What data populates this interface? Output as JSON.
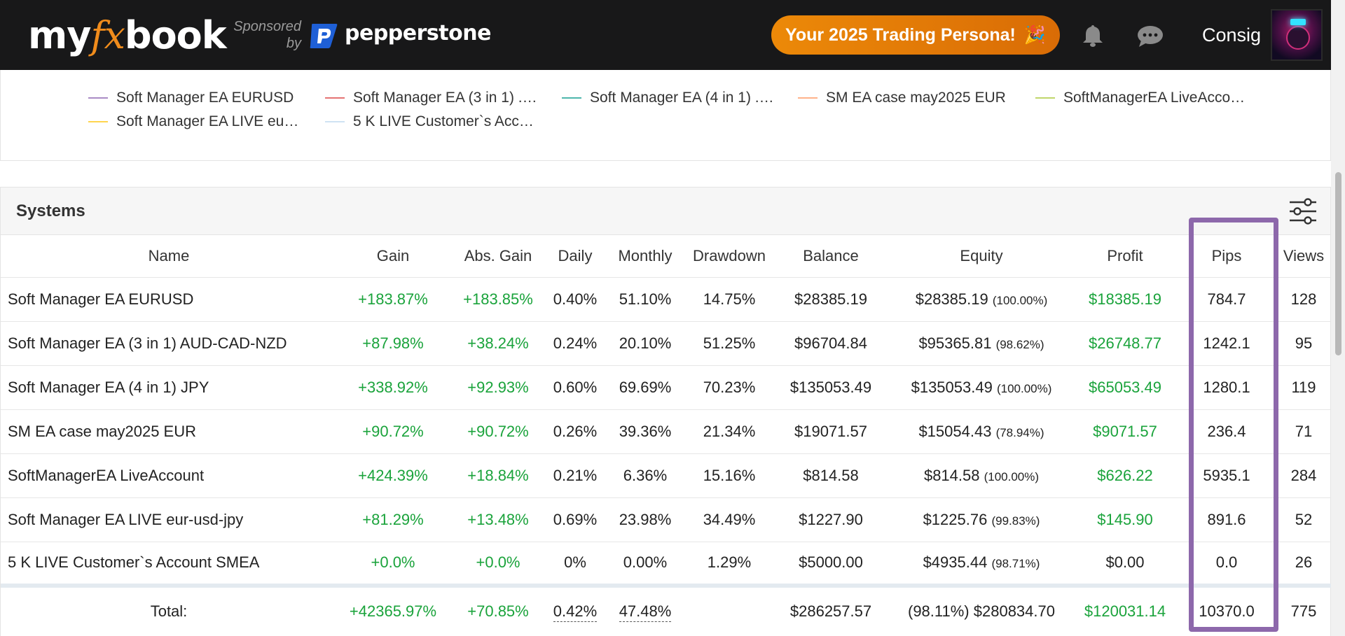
{
  "navbar": {
    "logo_pre": "my",
    "logo_fx": "fx",
    "logo_post": "book",
    "sponsored_line1": "Sponsored",
    "sponsored_line2": "by",
    "sponsor_name": "pepperstone",
    "persona_button": "Your 2025 Trading Persona!",
    "persona_emoji": "🎉",
    "username": "Consig",
    "accent": "#ec8908"
  },
  "legend": [
    {
      "label": "Soft Manager EA EURUSD",
      "color": "#a98bc5"
    },
    {
      "label": "Soft Manager EA (3 in 1) .…",
      "color": "#e57373"
    },
    {
      "label": "Soft Manager EA (4 in 1) .…",
      "color": "#4db6ac"
    },
    {
      "label": "SM EA case may2025 EUR",
      "color": "#ffb28a"
    },
    {
      "label": "SoftManagerEA LiveAcco…",
      "color": "#c0d66a"
    },
    {
      "label": "Soft Manager EA LIVE eu…",
      "color": "#ffd54f"
    },
    {
      "label": "5 K LIVE Customer`s Acc…",
      "color": "#cfe3f3"
    }
  ],
  "systems": {
    "title": "Systems",
    "columns": [
      "Name",
      "Gain",
      "Abs. Gain",
      "Daily",
      "Monthly",
      "Drawdown",
      "Balance",
      "Equity",
      "Profit",
      "Pips",
      "Views"
    ],
    "rows": [
      {
        "name": "Soft Manager EA EURUSD",
        "gain": "+183.87%",
        "abs_gain": "+183.85%",
        "daily": "0.40%",
        "monthly": "51.10%",
        "drawdown": "14.75%",
        "balance": "$28385.19",
        "equity": "$28385.19",
        "equity_pct": "(100.00%)",
        "profit": "$18385.19",
        "pips": "784.7",
        "views": "128"
      },
      {
        "name": "Soft Manager EA (3 in 1) AUD-CAD-NZD",
        "gain": "+87.98%",
        "abs_gain": "+38.24%",
        "daily": "0.24%",
        "monthly": "20.10%",
        "drawdown": "51.25%",
        "balance": "$96704.84",
        "equity": "$95365.81",
        "equity_pct": "(98.62%)",
        "profit": "$26748.77",
        "pips": "1242.1",
        "views": "95"
      },
      {
        "name": "Soft Manager EA (4 in 1) JPY",
        "gain": "+338.92%",
        "abs_gain": "+92.93%",
        "daily": "0.60%",
        "monthly": "69.69%",
        "drawdown": "70.23%",
        "balance": "$135053.49",
        "equity": "$135053.49",
        "equity_pct": "(100.00%)",
        "profit": "$65053.49",
        "pips": "1280.1",
        "views": "119"
      },
      {
        "name": "SM EA case may2025 EUR",
        "gain": "+90.72%",
        "abs_gain": "+90.72%",
        "daily": "0.26%",
        "monthly": "39.36%",
        "drawdown": "21.34%",
        "balance": "$19071.57",
        "equity": "$15054.43",
        "equity_pct": "(78.94%)",
        "profit": "$9071.57",
        "pips": "236.4",
        "views": "71"
      },
      {
        "name": "SoftManagerEA LiveAccount",
        "gain": "+424.39%",
        "abs_gain": "+18.84%",
        "daily": "0.21%",
        "monthly": "6.36%",
        "drawdown": "15.16%",
        "balance": "$814.58",
        "equity": "$814.58",
        "equity_pct": "(100.00%)",
        "profit": "$626.22",
        "pips": "5935.1",
        "views": "284"
      },
      {
        "name": "Soft Manager EA LIVE eur-usd-jpy",
        "gain": "+81.29%",
        "abs_gain": "+13.48%",
        "daily": "0.69%",
        "monthly": "23.98%",
        "drawdown": "34.49%",
        "balance": "$1227.90",
        "equity": "$1225.76",
        "equity_pct": "(99.83%)",
        "profit": "$145.90",
        "pips": "891.6",
        "views": "52"
      },
      {
        "name": "5 K LIVE Customer`s Account SMEA",
        "gain": "+0.0%",
        "abs_gain": "+0.0%",
        "daily": "0%",
        "monthly": "0.00%",
        "drawdown": "1.29%",
        "balance": "$5000.00",
        "equity": "$4935.44",
        "equity_pct": "(98.71%)",
        "profit": "$0.00",
        "pips": "0.0",
        "views": "26"
      }
    ],
    "total": {
      "label": "Total:",
      "gain": "+42365.97%",
      "abs_gain": "+70.85%",
      "daily": "0.42%",
      "monthly": "47.48%",
      "drawdown": "",
      "balance": "$286257.57",
      "equity": "(98.11%) $280834.70",
      "profit": "$120031.14",
      "pips": "10370.0",
      "views": "775"
    },
    "highlight_color": "#8d68ab"
  }
}
